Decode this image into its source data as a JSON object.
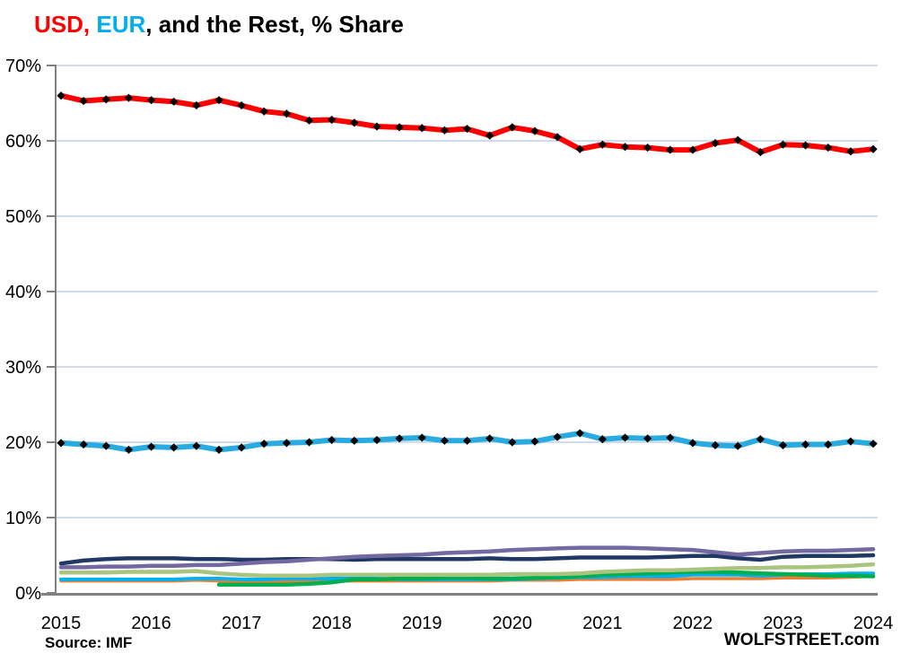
{
  "title": {
    "usd": "USD,",
    "usd_color": "#FF0000",
    "eur": " EUR",
    "eur_color": "#00AEEF",
    "rest": ", and the Rest, % Share",
    "rest_color": "#000000"
  },
  "footer": {
    "source": "Source: IMF",
    "branding": "WOLFSTREET.com"
  },
  "chart_data": {
    "type": "line",
    "title": "USD, EUR, and the Rest, % Share",
    "frequency": "quarterly",
    "x_tick_labels": [
      "2015",
      "2016",
      "2017",
      "2018",
      "2019",
      "2020",
      "2021",
      "2022",
      "2023",
      "2024"
    ],
    "y_tick_labels": [
      "0%",
      "10%",
      "20%",
      "30%",
      "40%",
      "50%",
      "60%",
      "70%"
    ],
    "ylim": [
      0,
      70
    ],
    "grid": true,
    "grid_color": "#BDD1E7",
    "axis_color": "#808080",
    "marker_color": "#000000",
    "legend_position": "none",
    "series": [
      {
        "name": "rest-orange",
        "color": "#ED7D31",
        "width": 3.5,
        "markers": false,
        "values": [
          1.6,
          1.6,
          1.6,
          1.6,
          1.6,
          1.6,
          1.7,
          1.6,
          1.5,
          1.5,
          1.5,
          1.5,
          1.6,
          1.6,
          1.6,
          1.6,
          1.6,
          1.6,
          1.6,
          1.6,
          1.7,
          1.7,
          1.7,
          1.8,
          1.8,
          1.8,
          1.8,
          1.8,
          1.9,
          1.9,
          1.9,
          1.9,
          2.0,
          2.0,
          2.0,
          2.1,
          2.2
        ]
      },
      {
        "name": "rest-lightblue",
        "color": "#00B0F0",
        "width": 4,
        "markers": false,
        "values": [
          1.8,
          1.8,
          1.8,
          1.8,
          1.8,
          1.8,
          1.9,
          1.9,
          1.8,
          1.8,
          1.9,
          1.9,
          1.9,
          1.9,
          1.9,
          1.8,
          1.8,
          1.8,
          1.8,
          1.8,
          1.8,
          1.9,
          2.0,
          2.1,
          2.1,
          2.2,
          2.2,
          2.2,
          2.4,
          2.4,
          2.4,
          2.3,
          2.4,
          2.5,
          2.5,
          2.6,
          2.6
        ]
      },
      {
        "name": "rest-green",
        "color": "#00AF50",
        "width": 4.5,
        "markers": false,
        "values": [
          null,
          null,
          null,
          null,
          null,
          null,
          null,
          1.1,
          1.1,
          1.1,
          1.1,
          1.2,
          1.4,
          1.8,
          1.8,
          1.9,
          1.9,
          2.0,
          2.0,
          1.9,
          1.9,
          2.0,
          2.1,
          2.2,
          2.4,
          2.5,
          2.6,
          2.7,
          2.8,
          2.8,
          2.7,
          2.6,
          2.5,
          2.4,
          2.3,
          2.3,
          2.2
        ]
      },
      {
        "name": "rest-sage",
        "color": "#A9C47F",
        "width": 4.5,
        "markers": false,
        "values": [
          2.7,
          2.7,
          2.7,
          2.8,
          2.8,
          2.8,
          2.9,
          2.6,
          2.4,
          2.3,
          2.3,
          2.3,
          2.4,
          2.4,
          2.4,
          2.4,
          2.4,
          2.4,
          2.4,
          2.4,
          2.5,
          2.5,
          2.5,
          2.6,
          2.8,
          2.9,
          3.0,
          3.0,
          3.1,
          3.2,
          3.3,
          3.3,
          3.4,
          3.4,
          3.5,
          3.6,
          3.8
        ]
      },
      {
        "name": "rest-navy",
        "color": "#1F3864",
        "width": 4.5,
        "markers": false,
        "values": [
          3.9,
          4.3,
          4.5,
          4.6,
          4.6,
          4.6,
          4.5,
          4.5,
          4.4,
          4.4,
          4.5,
          4.5,
          4.5,
          4.4,
          4.5,
          4.5,
          4.5,
          4.5,
          4.5,
          4.6,
          4.5,
          4.5,
          4.6,
          4.7,
          4.7,
          4.7,
          4.7,
          4.8,
          4.9,
          4.9,
          4.6,
          4.4,
          4.8,
          4.9,
          4.9,
          4.9,
          5.0
        ]
      },
      {
        "name": "rest-purple",
        "color": "#7368A0",
        "width": 4.5,
        "markers": false,
        "values": [
          3.4,
          3.4,
          3.5,
          3.5,
          3.6,
          3.6,
          3.7,
          3.7,
          3.9,
          4.1,
          4.2,
          4.4,
          4.6,
          4.8,
          4.9,
          5.0,
          5.1,
          5.3,
          5.4,
          5.5,
          5.7,
          5.8,
          5.9,
          6.0,
          6.0,
          6.0,
          5.9,
          5.8,
          5.7,
          5.4,
          5.1,
          5.3,
          5.5,
          5.6,
          5.6,
          5.7,
          5.8
        ]
      },
      {
        "name": "USD",
        "color": "#FF0000",
        "width": 6,
        "markers": true,
        "values": [
          66.0,
          65.3,
          65.5,
          65.7,
          65.4,
          65.2,
          64.7,
          65.4,
          64.7,
          63.9,
          63.6,
          62.7,
          62.8,
          62.4,
          61.9,
          61.8,
          61.7,
          61.4,
          61.6,
          60.7,
          61.8,
          61.3,
          60.5,
          58.9,
          59.5,
          59.2,
          59.1,
          58.8,
          58.8,
          59.7,
          60.1,
          58.5,
          59.5,
          59.4,
          59.1,
          58.6,
          58.9
        ]
      },
      {
        "name": "EUR",
        "color": "#29ABE2",
        "width": 6,
        "markers": true,
        "values": [
          19.9,
          19.7,
          19.5,
          19.0,
          19.4,
          19.3,
          19.5,
          19.0,
          19.3,
          19.8,
          19.9,
          20.0,
          20.3,
          20.2,
          20.3,
          20.5,
          20.6,
          20.2,
          20.2,
          20.5,
          20.0,
          20.1,
          20.7,
          21.2,
          20.4,
          20.6,
          20.5,
          20.6,
          19.9,
          19.6,
          19.5,
          20.4,
          19.6,
          19.7,
          19.7,
          20.1,
          19.8
        ]
      }
    ]
  }
}
